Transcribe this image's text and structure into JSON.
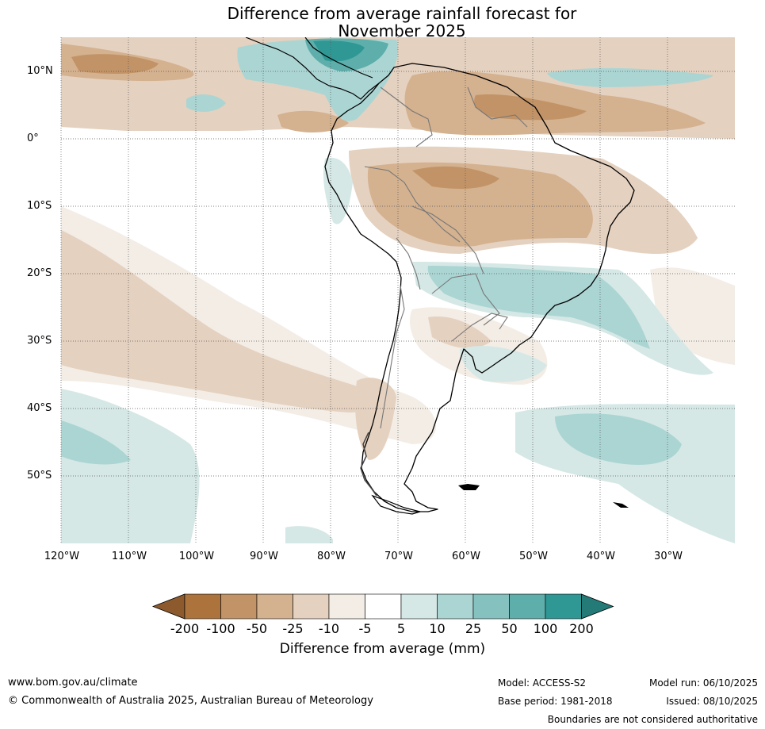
{
  "title_line1": "Difference from average rainfall forecast for",
  "title_line2": "November 2025",
  "map": {
    "lat_labels": [
      "10°N",
      "0°",
      "10°S",
      "20°S",
      "30°S",
      "40°S",
      "50°S"
    ],
    "lon_labels": [
      "120°W",
      "110°W",
      "100°W",
      "90°W",
      "80°W",
      "70°W",
      "60°W",
      "50°W",
      "40°W",
      "30°W"
    ]
  },
  "colorbar": {
    "levels": [
      "-200",
      "-100",
      "-50",
      "-25",
      "-10",
      "-5",
      "5",
      "10",
      "25",
      "50",
      "100",
      "200"
    ],
    "colors": [
      "#8c5a2d",
      "#ad733c",
      "#c29366",
      "#d4b18f",
      "#e5d1bf",
      "#f3ede6",
      "#ffffff",
      "#d5e8e6",
      "#abd5d3",
      "#85c2bf",
      "#5eaeab",
      "#2f9894",
      "#247a76"
    ],
    "label": "Difference from average (mm)"
  },
  "footer": {
    "website": "www.bom.gov.au/climate",
    "copyright": "© Commonwealth of Australia 2025, Australian Bureau of Meteorology",
    "model": "Model: ACCESS-S2",
    "base_period": "Base period: 1981-2018",
    "model_run": "Model run: 06/10/2025",
    "issued": "Issued: 08/10/2025",
    "disclaimer": "Boundaries are not considered authoritative"
  }
}
